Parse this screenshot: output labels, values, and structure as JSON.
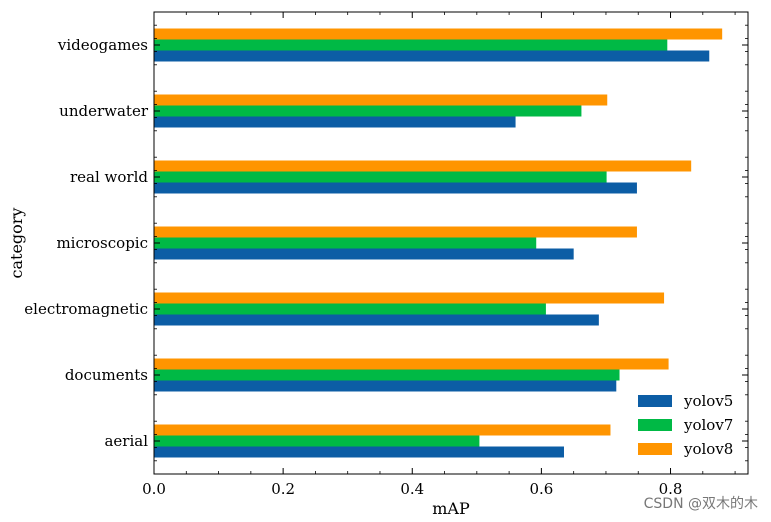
{
  "chart_data": {
    "type": "bar",
    "orientation": "horizontal",
    "categories": [
      "aerial",
      "documents",
      "electromagnetic",
      "microscopic",
      "real world",
      "underwater",
      "videogames"
    ],
    "series": [
      {
        "name": "yolov5",
        "color": "#0C5DA5",
        "values": [
          0.635,
          0.716,
          0.689,
          0.65,
          0.748,
          0.56,
          0.86
        ]
      },
      {
        "name": "yolov7",
        "color": "#00B945",
        "values": [
          0.504,
          0.721,
          0.607,
          0.592,
          0.701,
          0.662,
          0.795
        ]
      },
      {
        "name": "yolov8",
        "color": "#FF9500",
        "values": [
          0.707,
          0.797,
          0.79,
          0.748,
          0.832,
          0.702,
          0.88
        ]
      }
    ],
    "xlabel": "mAP",
    "ylabel": "category",
    "xlim": [
      0.0,
      0.92
    ],
    "xticks": [
      0.0,
      0.2,
      0.4,
      0.6,
      0.8
    ],
    "xtick_labels": [
      "0.0",
      "0.2",
      "0.4",
      "0.6",
      "0.8"
    ],
    "grid": false,
    "legend_position": "lower-right"
  },
  "watermark": "CSDN @双木的木"
}
